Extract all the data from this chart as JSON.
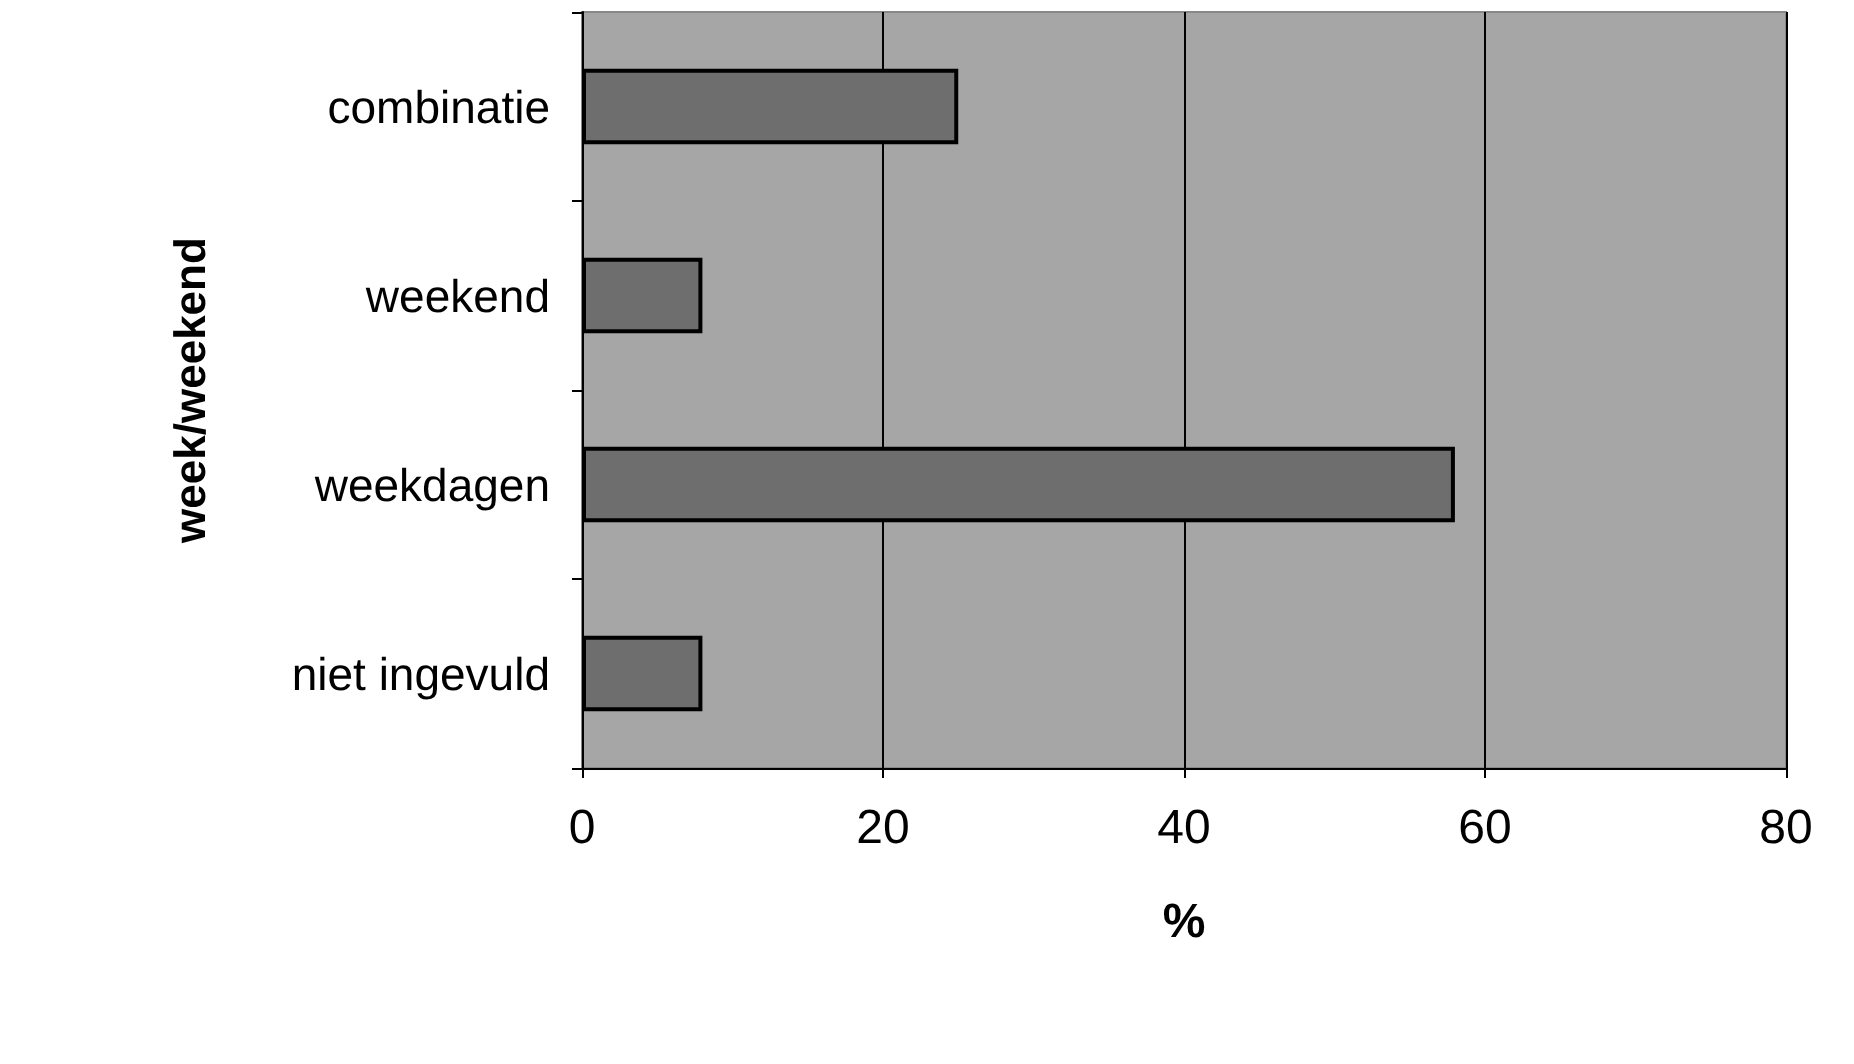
{
  "chart_data": {
    "type": "bar",
    "orientation": "horizontal",
    "categories": [
      "combinatie",
      "weekend",
      "weekdagen",
      "niet ingevuld"
    ],
    "values": [
      25,
      8,
      58,
      8
    ],
    "color": "#6e6e6e",
    "xlabel": "%",
    "ylabel": "week/weekend",
    "xlim": [
      0,
      80
    ],
    "xticks": [
      0,
      20,
      40,
      60,
      80
    ],
    "grid": "x"
  }
}
